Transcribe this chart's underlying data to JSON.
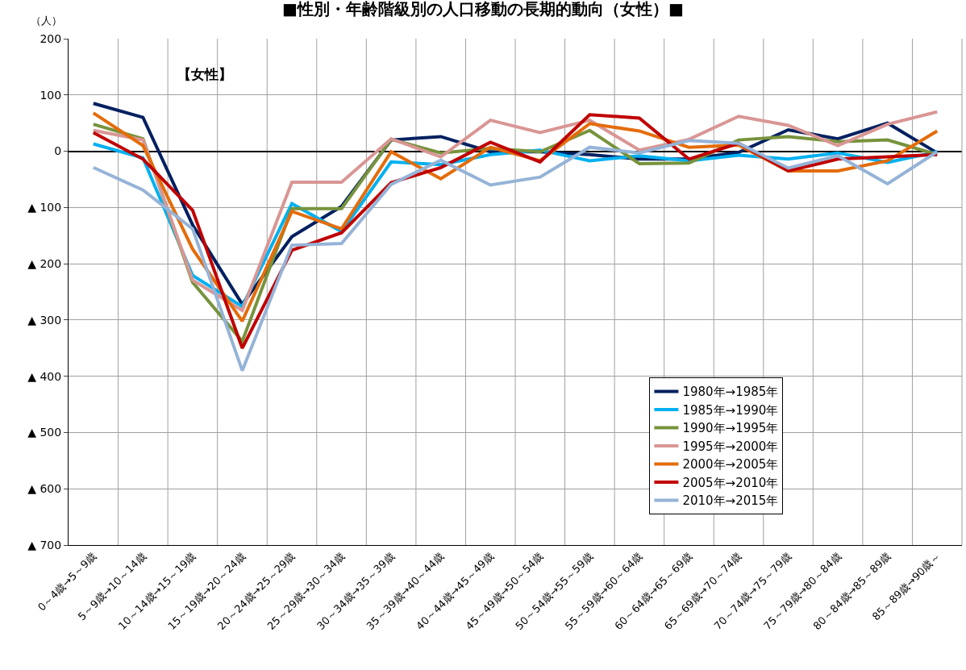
{
  "chart_data": {
    "type": "line",
    "title": "■性別・年齢階級別の人口移動の長期的動向（女性）■",
    "ylabel": "（人）",
    "annotations": [
      "【女性】"
    ],
    "categories": [
      "0～4歳→5～9歳",
      "5～9歳→10～14歳",
      "10～14歳→15～19歳",
      "15～19歳→20～24歳",
      "20～24歳→25～29歳",
      "25～29歳→30～34歳",
      "30～34歳→35～39歳",
      "35～39歳→40～44歳",
      "40～44歳→45～49歳",
      "45～49歳→50～54歳",
      "50～54歳→55～59歳",
      "55～59歳→60～64歳",
      "60～64歳→65～69歳",
      "65～69歳→70～74歳",
      "70～74歳→75～79歳",
      "75～79歳→80～84歳",
      "80～84歳→85～89歳",
      "85～89歳→90歳～"
    ],
    "series": [
      {
        "name": "1980年→1985年",
        "color": "#002060",
        "values": [
          85,
          60,
          -131,
          -272,
          -152,
          -98,
          20,
          26,
          -1,
          -1,
          -6,
          -14,
          -14,
          -2,
          38,
          22,
          50,
          -3
        ]
      },
      {
        "name": "1985年→1990年",
        "color": "#00b0f0",
        "values": [
          13,
          -12,
          -221,
          -276,
          -93,
          -143,
          -19,
          -24,
          -6,
          2,
          -17,
          -8,
          -17,
          -7,
          -14,
          -3,
          -20,
          -1
        ]
      },
      {
        "name": "1990年→1995年",
        "color": "#77933c",
        "values": [
          48,
          22,
          -233,
          -338,
          -102,
          -102,
          21,
          -3,
          5,
          -1,
          37,
          -22,
          -21,
          20,
          26,
          17,
          20,
          -6
        ]
      },
      {
        "name": "1995年→2000年",
        "color": "#d99694",
        "values": [
          37,
          20,
          -229,
          -283,
          -55,
          -55,
          22,
          -10,
          55,
          33,
          55,
          2,
          21,
          62,
          46,
          10,
          48,
          70
        ]
      },
      {
        "name": "2000年→2005年",
        "color": "#e46c0a",
        "values": [
          68,
          10,
          -174,
          -302,
          -107,
          -138,
          -1,
          -49,
          7,
          -17,
          49,
          36,
          7,
          11,
          -35,
          -35,
          -17,
          36
        ]
      },
      {
        "name": "2005年→2010年",
        "color": "#c00000",
        "values": [
          33,
          -14,
          -105,
          -350,
          -176,
          -145,
          -56,
          -29,
          16,
          -19,
          65,
          59,
          -14,
          14,
          -35,
          -14,
          -10,
          -6
        ]
      },
      {
        "name": "2010年→2015年",
        "color": "#95b3d7",
        "values": [
          -29,
          -69,
          -138,
          -390,
          -167,
          -164,
          -59,
          -16,
          -60,
          -46,
          7,
          -3,
          19,
          14,
          -30,
          -8,
          -58,
          -1
        ]
      }
    ],
    "ylim": [
      -700,
      200
    ],
    "yticks": [
      200,
      100,
      0,
      {
        "value": -100,
        "label": "▲ 100"
      },
      {
        "value": -200,
        "label": "▲ 200"
      },
      {
        "value": -300,
        "label": "▲ 300"
      },
      {
        "value": -400,
        "label": "▲ 400"
      },
      {
        "value": -500,
        "label": "▲ 500"
      },
      {
        "value": -600,
        "label": "▲ 600"
      },
      {
        "value": -700,
        "label": "▲ 700"
      }
    ],
    "grid": true,
    "legend": "bottom right",
    "marker": "none",
    "line_style": "solid"
  }
}
